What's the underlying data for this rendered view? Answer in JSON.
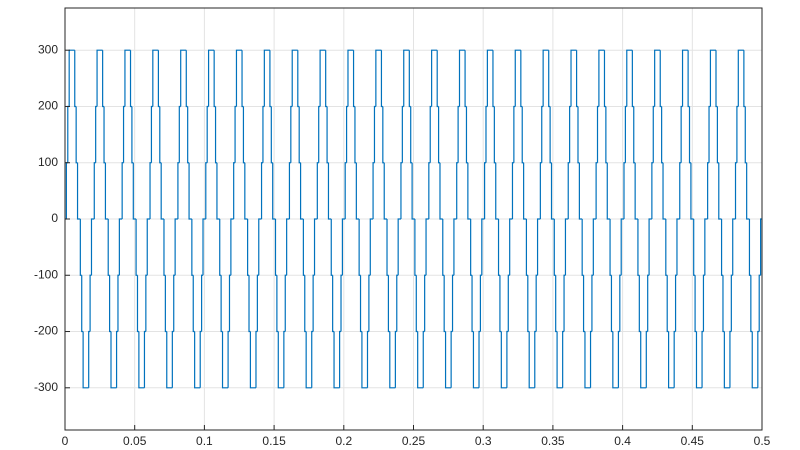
{
  "chart_data": {
    "type": "line",
    "step": "post",
    "grid": true,
    "xlim": [
      0,
      0.5
    ],
    "ylim": [
      -375,
      375
    ],
    "xticks": [
      0,
      0.05,
      0.1,
      0.15,
      0.2,
      0.25,
      0.3,
      0.35,
      0.4,
      0.45,
      0.5
    ],
    "yticks": [
      -300,
      -200,
      -100,
      0,
      100,
      200,
      300
    ],
    "series": [
      {
        "color": "#0072bd",
        "x": [
          0,
          0.001,
          0.002,
          0.003,
          0.007,
          0.008,
          0.009,
          0.011,
          0.012,
          0.013,
          0.017,
          0.018,
          0.019,
          0.021,
          0.022,
          0.023,
          0.027,
          0.028,
          0.029,
          0.031,
          0.032,
          0.033,
          0.037,
          0.038,
          0.039,
          0.041,
          0.042,
          0.043,
          0.047,
          0.048,
          0.049,
          0.051,
          0.052,
          0.053,
          0.057,
          0.058,
          0.059,
          0.061,
          0.062,
          0.063,
          0.067,
          0.068,
          0.069,
          0.071,
          0.072,
          0.073,
          0.077,
          0.078,
          0.079,
          0.081,
          0.082,
          0.083,
          0.087,
          0.088,
          0.089,
          0.091,
          0.092,
          0.093,
          0.097,
          0.098,
          0.099,
          0.101,
          0.102,
          0.103,
          0.107,
          0.108,
          0.109,
          0.111,
          0.112,
          0.113,
          0.117,
          0.118,
          0.119,
          0.121,
          0.122,
          0.123,
          0.127,
          0.128,
          0.129,
          0.131,
          0.132,
          0.133,
          0.137,
          0.138,
          0.139,
          0.141,
          0.142,
          0.143,
          0.147,
          0.148,
          0.149,
          0.151,
          0.152,
          0.153,
          0.157,
          0.158,
          0.159,
          0.161,
          0.162,
          0.163,
          0.167,
          0.168,
          0.169,
          0.171,
          0.172,
          0.173,
          0.177,
          0.178,
          0.179,
          0.181,
          0.182,
          0.183,
          0.187,
          0.188,
          0.189,
          0.191,
          0.192,
          0.193,
          0.197,
          0.198,
          0.199,
          0.201,
          0.202,
          0.203,
          0.207,
          0.208,
          0.209,
          0.211,
          0.212,
          0.213,
          0.217,
          0.218,
          0.219,
          0.221,
          0.222,
          0.223,
          0.227,
          0.228,
          0.229,
          0.231,
          0.232,
          0.233,
          0.237,
          0.238,
          0.239,
          0.241,
          0.242,
          0.243,
          0.247,
          0.248,
          0.249,
          0.251,
          0.252,
          0.253,
          0.257,
          0.258,
          0.259,
          0.261,
          0.262,
          0.263,
          0.267,
          0.268,
          0.269,
          0.271,
          0.272,
          0.273,
          0.277,
          0.278,
          0.279,
          0.281,
          0.282,
          0.283,
          0.287,
          0.288,
          0.289,
          0.291,
          0.292,
          0.293,
          0.297,
          0.298,
          0.299,
          0.301,
          0.302,
          0.303,
          0.307,
          0.308,
          0.309,
          0.311,
          0.312,
          0.313,
          0.317,
          0.318,
          0.319,
          0.321,
          0.322,
          0.323,
          0.327,
          0.328,
          0.329,
          0.331,
          0.332,
          0.333,
          0.337,
          0.338,
          0.339,
          0.341,
          0.342,
          0.343,
          0.347,
          0.348,
          0.349,
          0.351,
          0.352,
          0.353,
          0.357,
          0.358,
          0.359,
          0.361,
          0.362,
          0.363,
          0.367,
          0.368,
          0.369,
          0.371,
          0.372,
          0.373,
          0.377,
          0.378,
          0.379,
          0.381,
          0.382,
          0.383,
          0.387,
          0.388,
          0.389,
          0.391,
          0.392,
          0.393,
          0.397,
          0.398,
          0.399,
          0.401,
          0.402,
          0.403,
          0.407,
          0.408,
          0.409,
          0.411,
          0.412,
          0.413,
          0.417,
          0.418,
          0.419,
          0.421,
          0.422,
          0.423,
          0.427,
          0.428,
          0.429,
          0.431,
          0.432,
          0.433,
          0.437,
          0.438,
          0.439,
          0.441,
          0.442,
          0.443,
          0.447,
          0.448,
          0.449,
          0.451,
          0.452,
          0.453,
          0.457,
          0.458,
          0.459,
          0.461,
          0.462,
          0.463,
          0.467,
          0.468,
          0.469,
          0.471,
          0.472,
          0.473,
          0.477,
          0.478,
          0.479,
          0.481,
          0.482,
          0.483,
          0.487,
          0.488,
          0.489,
          0.491,
          0.492,
          0.493,
          0.497,
          0.498,
          0.499
        ],
        "values": [
          0,
          100,
          200,
          300,
          200,
          100,
          0,
          -100,
          -200,
          -300,
          -200,
          -100,
          0,
          100,
          200,
          300,
          200,
          100,
          0,
          -100,
          -200,
          -300,
          -200,
          -100,
          0,
          100,
          200,
          300,
          200,
          100,
          0,
          -100,
          -200,
          -300,
          -200,
          -100,
          0,
          100,
          200,
          300,
          200,
          100,
          0,
          -100,
          -200,
          -300,
          -200,
          -100,
          0,
          100,
          200,
          300,
          200,
          100,
          0,
          -100,
          -200,
          -300,
          -200,
          -100,
          0,
          100,
          200,
          300,
          200,
          100,
          0,
          -100,
          -200,
          -300,
          -200,
          -100,
          0,
          100,
          200,
          300,
          200,
          100,
          0,
          -100,
          -200,
          -300,
          -200,
          -100,
          0,
          100,
          200,
          300,
          200,
          100,
          0,
          -100,
          -200,
          -300,
          -200,
          -100,
          0,
          100,
          200,
          300,
          200,
          100,
          0,
          -100,
          -200,
          -300,
          -200,
          -100,
          0,
          100,
          200,
          300,
          200,
          100,
          0,
          -100,
          -200,
          -300,
          -200,
          -100,
          0,
          100,
          200,
          300,
          200,
          100,
          0,
          -100,
          -200,
          -300,
          -200,
          -100,
          0,
          100,
          200,
          300,
          200,
          100,
          0,
          -100,
          -200,
          -300,
          -200,
          -100,
          0,
          100,
          200,
          300,
          200,
          100,
          0,
          -100,
          -200,
          -300,
          -200,
          -100,
          0,
          100,
          200,
          300,
          200,
          100,
          0,
          -100,
          -200,
          -300,
          -200,
          -100,
          0,
          100,
          200,
          300,
          200,
          100,
          0,
          -100,
          -200,
          -300,
          -200,
          -100,
          0,
          100,
          200,
          300,
          200,
          100,
          0,
          -100,
          -200,
          -300,
          -200,
          -100,
          0,
          100,
          200,
          300,
          200,
          100,
          0,
          -100,
          -200,
          -300,
          -200,
          -100,
          0,
          100,
          200,
          300,
          200,
          100,
          0,
          -100,
          -200,
          -300,
          -200,
          -100,
          0,
          100,
          200,
          300,
          200,
          100,
          0,
          -100,
          -200,
          -300,
          -200,
          -100,
          0,
          100,
          200,
          300,
          200,
          100,
          0,
          -100,
          -200,
          -300,
          -200,
          -100,
          0,
          100,
          200,
          300,
          200,
          100,
          0,
          -100,
          -200,
          -300,
          -200,
          -100,
          0,
          100,
          200,
          300,
          200,
          100,
          0,
          -100,
          -200,
          -300,
          -200,
          -100,
          0,
          100,
          200,
          300,
          200,
          100,
          0,
          -100,
          -200,
          -300,
          -200,
          -100,
          0,
          100,
          200,
          300,
          200,
          100,
          0,
          -100,
          -200,
          -300,
          -200,
          -100,
          0,
          100,
          200,
          300,
          200,
          100,
          0,
          -100,
          -200,
          -300,
          -200,
          -100,
          0
        ]
      }
    ]
  }
}
